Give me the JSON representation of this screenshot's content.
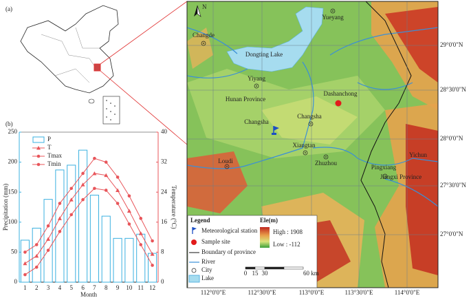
{
  "panel_a": {
    "label": "(a)"
  },
  "chart_data": {
    "type": "combo",
    "title": "(b)",
    "categories": [
      "1",
      "2",
      "3",
      "4",
      "5",
      "6",
      "7",
      "8",
      "9",
      "10",
      "11",
      "12"
    ],
    "xlabel": "Month",
    "ylabel": "Precipitation (mm)",
    "y2label": "Temperature (°C)",
    "ylim": [
      0,
      250
    ],
    "yticks": [
      0,
      50,
      100,
      150,
      200,
      250
    ],
    "y2lim": [
      0,
      40
    ],
    "y2ticks": [
      0,
      8,
      16,
      24,
      32,
      40
    ],
    "axis_colors": {
      "y": "#3ab0e0",
      "y2": "#e8555a"
    },
    "series": [
      {
        "name": "P",
        "type": "bar",
        "color": "#3ab0e0",
        "values": [
          70,
          90,
          138,
          187,
          195,
          220,
          145,
          110,
          73,
          73,
          80,
          48
        ]
      },
      {
        "name": "T",
        "type": "line",
        "marker": "triangle",
        "axis": "y2",
        "color": "#e8555a",
        "values": [
          5,
          7,
          11.5,
          17,
          22,
          26,
          29,
          28.5,
          24.5,
          19,
          13,
          7.5
        ]
      },
      {
        "name": "Tmax",
        "type": "line",
        "marker": "circle",
        "axis": "y2",
        "color": "#e8555a",
        "values": [
          8,
          10,
          15,
          21,
          25,
          29,
          33,
          32,
          28,
          23,
          17,
          11
        ]
      },
      {
        "name": "Tmin",
        "type": "line",
        "marker": "circle",
        "axis": "y2",
        "color": "#e8555a",
        "values": [
          2,
          4,
          8.5,
          13.5,
          18,
          22,
          25,
          24.5,
          21,
          15.5,
          10,
          4.5
        ]
      }
    ]
  },
  "map": {
    "north": "N",
    "labels": [
      "Yueyang",
      "Changde",
      "Dongting Lake",
      "Yiyang",
      "Dashanchong",
      "Hunan Province",
      "Changsha",
      "Changsha",
      "Xiangtan",
      "Zhuzhou",
      "Loudi",
      "Pingxiang",
      "Yichun",
      "Jiangxi Province"
    ],
    "lat_labels": [
      "29°0'0\"N",
      "28°30'0\"N",
      "28°0'0\"N",
      "27°30'0\"N",
      "27°0'0\"N"
    ],
    "lon_labels": [
      "112°0'0\"E",
      "112°30'0\"E",
      "113°0'0\"E",
      "113°30'0\"E",
      "114°0'0\"E"
    ],
    "legend": {
      "title": "Legend",
      "items": [
        "Meteorological station",
        "Sample site",
        "Boundary of province",
        "River",
        "City",
        "Lake"
      ],
      "elevation_title": "Ele(m)",
      "high": "High : 1908",
      "low": "Low : -112",
      "scale": [
        "0",
        "15",
        "30",
        "60 km"
      ]
    }
  }
}
